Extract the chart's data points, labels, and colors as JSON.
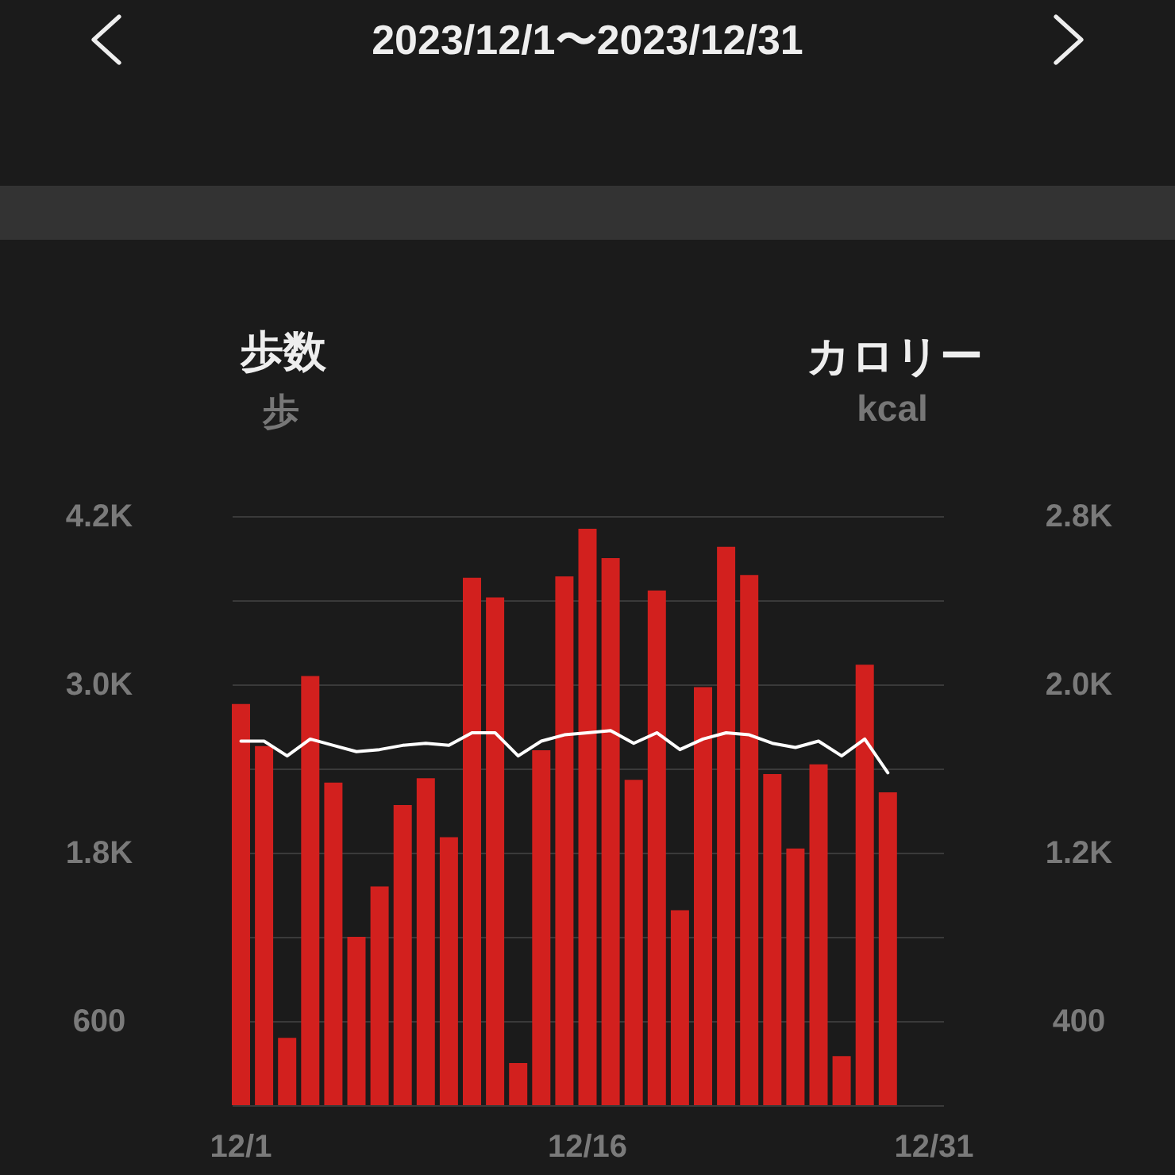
{
  "chart_data": {
    "type": "bar",
    "title": "2023/12/1〜2023/12/31",
    "ylabel": "歩数",
    "y2label": "カロリー",
    "annotations": [
      "歩",
      "kcal"
    ],
    "categories": [
      "12/1",
      null,
      null,
      null,
      null,
      null,
      null,
      null,
      null,
      null,
      null,
      null,
      null,
      null,
      null,
      "12/16",
      null,
      null,
      null,
      null,
      null,
      null,
      null,
      null,
      null,
      null,
      null,
      null,
      null,
      null,
      "12/31"
    ],
    "series": [
      {
        "color": "#d2201e",
        "values": [
          2860,
          2560,
          480,
          3060,
          2300,
          1200,
          1560,
          2140,
          2330,
          1910,
          3760,
          3620,
          300,
          2530,
          3770,
          4110,
          3900,
          2320,
          3670,
          1390,
          2980,
          3980,
          3780,
          2360,
          1830,
          2430,
          350,
          3140,
          2230,
          null,
          null
        ]
      },
      {
        "type": "line",
        "axis": "y2",
        "color": "#ffffff",
        "values": [
          1730,
          1730,
          1660,
          1740,
          1710,
          1680,
          1690,
          1710,
          1720,
          1710,
          1770,
          1770,
          1660,
          1730,
          1760,
          1770,
          1780,
          1720,
          1770,
          1690,
          1740,
          1770,
          1760,
          1720,
          1700,
          1730,
          1660,
          1740,
          1580,
          null,
          null
        ]
      }
    ],
    "ylim": [
      0,
      4200
    ],
    "yticks": [
      {
        "value": 0,
        "label": null
      },
      600,
      {
        "value": 1200,
        "label": null
      },
      {
        "value": 1800,
        "label": "1.8K"
      },
      {
        "value": 2400,
        "label": null
      },
      {
        "value": 3000,
        "label": "3.0K"
      },
      {
        "value": 3600,
        "label": null
      },
      {
        "value": 4200,
        "label": "4.2K"
      }
    ],
    "y2lim": [
      0,
      2800
    ],
    "y2ticks": [
      {
        "value": 0,
        "label": null
      },
      400,
      {
        "value": 800,
        "label": null
      },
      {
        "value": 1200,
        "label": "1.2K"
      },
      {
        "value": 1600,
        "label": null
      },
      {
        "value": 2000,
        "label": "2.0K"
      },
      {
        "value": 2400,
        "label": null
      },
      {
        "value": 2800,
        "label": "2.8K"
      }
    ],
    "grid": "y"
  }
}
